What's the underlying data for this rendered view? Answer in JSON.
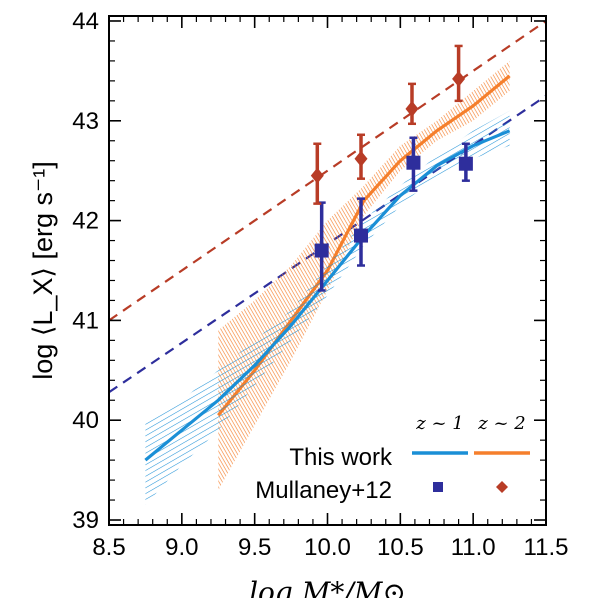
{
  "chart_data": {
    "type": "line",
    "xlabel": "log  M*/M⊙",
    "ylabel": "log ⟨L_X⟩ [erg s⁻¹]",
    "xlim": [
      8.5,
      11.5
    ],
    "ylim": [
      38.95,
      44.05
    ],
    "x_ticks": [
      "8.5",
      "9.0",
      "9.5",
      "10.0",
      "10.5",
      "11.0",
      "11.5"
    ],
    "y_ticks": [
      "39",
      "40",
      "41",
      "42",
      "43",
      "44"
    ],
    "grid": false,
    "legend": {
      "placement": "bottom-right",
      "col_headers": [
        "z ~ 1",
        "z ~ 2"
      ],
      "row_labels": [
        "This work",
        "Mullaney+12"
      ]
    },
    "colors": {
      "z1_line": "#1a8fd6",
      "z2_line": "#f57f2c",
      "z1_points": "#2e2e9c",
      "z2_points": "#b83c26"
    },
    "series": [
      {
        "label_ref": "This work, z ~ 1",
        "kind": "line_band",
        "x": [
          8.75,
          9.0,
          9.25,
          9.5,
          9.75,
          10.0,
          10.25,
          10.5,
          10.75,
          11.0,
          11.25
        ],
        "y": [
          39.6,
          39.9,
          40.2,
          40.55,
          40.95,
          41.4,
          41.85,
          42.25,
          42.55,
          42.75,
          42.9
        ],
        "y_low": [
          39.15,
          39.55,
          39.9,
          40.35,
          40.8,
          41.25,
          41.75,
          42.15,
          42.45,
          42.62,
          42.75
        ],
        "y_high": [
          40.0,
          40.2,
          40.5,
          40.8,
          41.1,
          41.55,
          42.0,
          42.35,
          42.65,
          42.9,
          43.1
        ]
      },
      {
        "label_ref": "This work, z ~ 2",
        "kind": "line_band",
        "x": [
          9.25,
          9.5,
          9.75,
          10.0,
          10.25,
          10.5,
          10.75,
          11.0,
          11.25
        ],
        "y": [
          40.05,
          40.5,
          41.0,
          41.5,
          42.2,
          42.6,
          42.9,
          43.15,
          43.45
        ],
        "y_low": [
          39.3,
          39.95,
          40.6,
          41.3,
          42.05,
          42.5,
          42.8,
          43.0,
          43.3
        ],
        "y_high": [
          40.9,
          41.2,
          41.55,
          42.0,
          42.35,
          42.75,
          43.0,
          43.3,
          43.6
        ]
      },
      {
        "label_ref": "Mullaney+12, z ~ 1",
        "kind": "points",
        "x": [
          9.96,
          10.23,
          10.59,
          10.95
        ],
        "y": [
          41.7,
          41.85,
          42.58,
          42.57
        ],
        "err_low": [
          0.4,
          0.3,
          0.28,
          0.17
        ],
        "err_high": [
          0.48,
          0.37,
          0.25,
          0.2
        ],
        "fit_line": {
          "x": [
            8.5,
            11.5
          ],
          "y": [
            40.28,
            43.25
          ]
        }
      },
      {
        "label_ref": "Mullaney+12, z ~ 2",
        "kind": "points",
        "x": [
          9.93,
          10.23,
          10.58,
          10.9
        ],
        "y": [
          42.45,
          42.62,
          43.12,
          43.42
        ],
        "err_low": [
          0.28,
          0.2,
          0.15,
          0.22
        ],
        "err_high": [
          0.32,
          0.24,
          0.25,
          0.33
        ],
        "fit_line": {
          "x": [
            8.5,
            11.5
          ],
          "y": [
            41.0,
            44.0
          ]
        }
      }
    ]
  }
}
